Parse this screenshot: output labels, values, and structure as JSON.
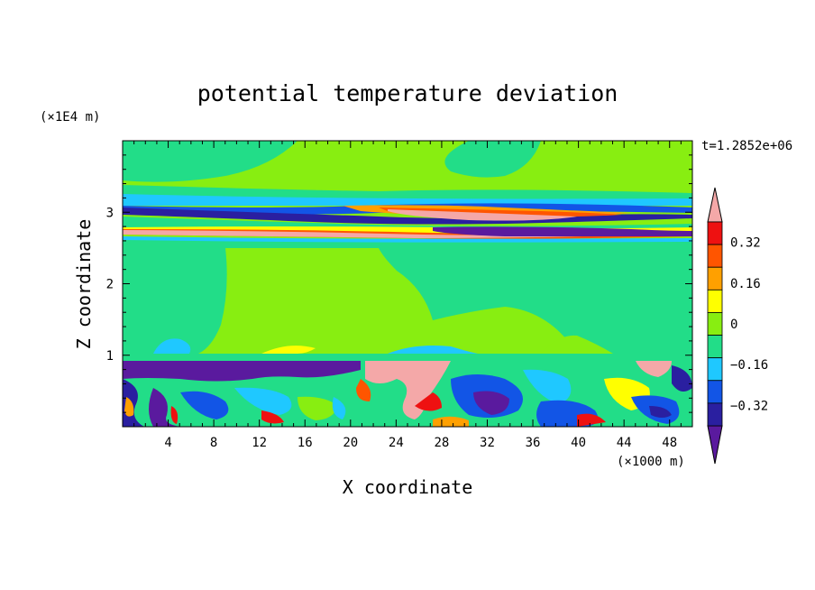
{
  "chart_data": {
    "type": "heatmap",
    "title": "potential temperature deviation",
    "xlabel": "X coordinate",
    "ylabel": "Z coordinate",
    "x_unit": "(×1000 m)",
    "y_unit": "(×1E4 m)",
    "time_label": "t=1.2852e+06",
    "xlim": [
      0,
      50
    ],
    "ylim": [
      0,
      4
    ],
    "x_ticks": [
      "4",
      "8",
      "12",
      "16",
      "20",
      "24",
      "28",
      "32",
      "36",
      "40",
      "44",
      "48"
    ],
    "y_ticks": [
      "1",
      "2",
      "3"
    ],
    "colorbar": {
      "levels": [
        -0.4,
        -0.32,
        -0.24,
        -0.16,
        -0.08,
        0,
        0.08,
        0.16,
        0.24,
        0.32,
        0.4
      ],
      "tick_labels": [
        "0.32",
        "0.16",
        "0",
        "−0.16",
        "−0.32"
      ],
      "colors": [
        "#5a1a9e",
        "#2a1fa0",
        "#1255e6",
        "#1fc8ff",
        "#22dd88",
        "#88ee11",
        "#ffff00",
        "#ffa000",
        "#ff5500",
        "#ee1111",
        "#f4a8a8"
      ]
    }
  }
}
